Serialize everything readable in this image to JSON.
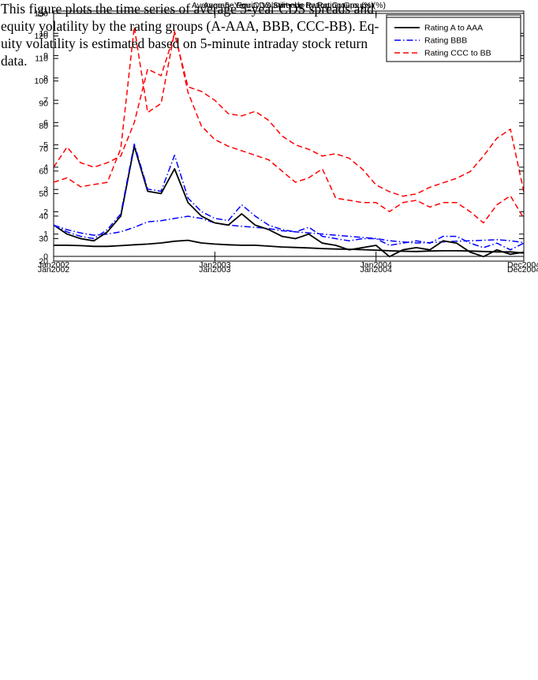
{
  "page": {
    "background": "#ffffff"
  },
  "colors": {
    "series_a_aaa": "#000000",
    "series_bbb": "#0000ff",
    "series_ccc_bb": "#ff0000",
    "axis": "#000000"
  },
  "caption": {
    "lines": [
      "This figure plots the time series of average 5-year CDS spreads and",
      "equity volatility by the rating groups (A-AAA, BBB, CCC-BB). Eq-",
      "uity volatility is estimated based on 5-minute intraday stock return",
      "data."
    ]
  },
  "chart_data": [
    {
      "type": "line",
      "title": "Average 5−Year CDS Spreads by Rating Groups (%)",
      "xlabel": "",
      "ylabel": "",
      "x_unit": "month",
      "x_count": 36,
      "x_ticks": [
        {
          "index": 0,
          "label": "Jan2002"
        },
        {
          "index": 12,
          "label": "Jan2003"
        },
        {
          "index": 24,
          "label": "Jan2004"
        },
        {
          "index": 35,
          "label": "Dec2004"
        }
      ],
      "ylim": [
        0,
        11
      ],
      "yticks": [
        0,
        1,
        2,
        3,
        4,
        5,
        6,
        7,
        8,
        9,
        10,
        11
      ],
      "grid": false,
      "legend_position": "top-right",
      "series": [
        {
          "name": "Rating A to AAA",
          "color": "#000000",
          "style": "solid",
          "values": [
            0.5,
            0.5,
            0.48,
            0.45,
            0.45,
            0.48,
            0.52,
            0.55,
            0.6,
            0.68,
            0.72,
            0.6,
            0.55,
            0.52,
            0.5,
            0.5,
            0.46,
            0.42,
            0.4,
            0.38,
            0.35,
            0.33,
            0.32,
            0.3,
            0.28,
            0.25,
            0.23,
            0.22,
            0.24,
            0.25,
            0.25,
            0.24,
            0.22,
            0.2,
            0.2,
            0.15
          ]
        },
        {
          "name": "Rating BBB",
          "color": "#0000ff",
          "style": "dashdot",
          "values": [
            1.4,
            1.2,
            1.05,
            0.95,
            1.0,
            1.1,
            1.3,
            1.55,
            1.6,
            1.7,
            1.8,
            1.7,
            1.5,
            1.4,
            1.35,
            1.3,
            1.25,
            1.15,
            1.1,
            1.05,
            1.0,
            0.95,
            0.9,
            0.85,
            0.8,
            0.7,
            0.65,
            0.6,
            0.62,
            0.65,
            0.68,
            0.7,
            0.72,
            0.75,
            0.7,
            0.62
          ]
        },
        {
          "name": "Rating CCC to BB",
          "color": "#ff0000",
          "style": "dashed",
          "values": [
            4.0,
            4.9,
            4.2,
            4.0,
            4.2,
            4.5,
            6.0,
            8.4,
            8.1,
            10.0,
            7.6,
            7.4,
            7.0,
            6.4,
            6.3,
            6.5,
            6.1,
            5.4,
            5.0,
            4.8,
            4.5,
            4.6,
            4.4,
            3.9,
            3.2,
            2.9,
            2.7,
            2.8,
            3.1,
            3.3,
            3.5,
            3.8,
            4.5,
            5.3,
            5.7,
            2.9
          ]
        }
      ]
    },
    {
      "type": "line",
      "title": "Average Equity Volatility by Rating Groups (%)",
      "xlabel": "",
      "ylabel": "",
      "x_unit": "month",
      "x_count": 36,
      "x_ticks": [
        {
          "index": 0,
          "label": "Jan2002"
        },
        {
          "index": 12,
          "label": "Jan2003"
        },
        {
          "index": 24,
          "label": "Jan2004"
        },
        {
          "index": 35,
          "label": "Dec2004"
        }
      ],
      "ylim": [
        20,
        130
      ],
      "yticks": [
        20,
        30,
        40,
        50,
        60,
        70,
        80,
        90,
        100,
        110,
        120,
        130
      ],
      "grid": false,
      "legend_position": "top-right",
      "series": [
        {
          "name": "Rating A to AAA",
          "color": "#000000",
          "style": "solid",
          "values": [
            36,
            32,
            30,
            29,
            33,
            40,
            71,
            51,
            50,
            61,
            46,
            40,
            37,
            36,
            41,
            36,
            34,
            31,
            30,
            32,
            28,
            27,
            25,
            26,
            27,
            22,
            25,
            26,
            25,
            29,
            28,
            24,
            22,
            25,
            23,
            24
          ]
        },
        {
          "name": "Rating BBB",
          "color": "#0000ff",
          "style": "dashdot",
          "values": [
            36,
            33,
            31,
            30,
            34,
            41,
            72,
            52,
            51,
            67,
            48,
            42,
            39,
            38,
            45,
            40,
            36,
            34,
            33,
            35,
            31,
            30,
            29,
            30,
            30,
            27,
            28,
            29,
            28,
            31,
            31,
            28,
            26,
            28,
            25,
            28
          ]
        },
        {
          "name": "Rating CCC to BB",
          "color": "#ff0000",
          "style": "dashed",
          "values": [
            55,
            57,
            53,
            54,
            55,
            70,
            124,
            86,
            90,
            122,
            95,
            80,
            74,
            71,
            69,
            67,
            65,
            60,
            55,
            57,
            61,
            48,
            47,
            46,
            46,
            42,
            46,
            47,
            44,
            46,
            46,
            42,
            37,
            45,
            49,
            39
          ]
        }
      ]
    }
  ]
}
